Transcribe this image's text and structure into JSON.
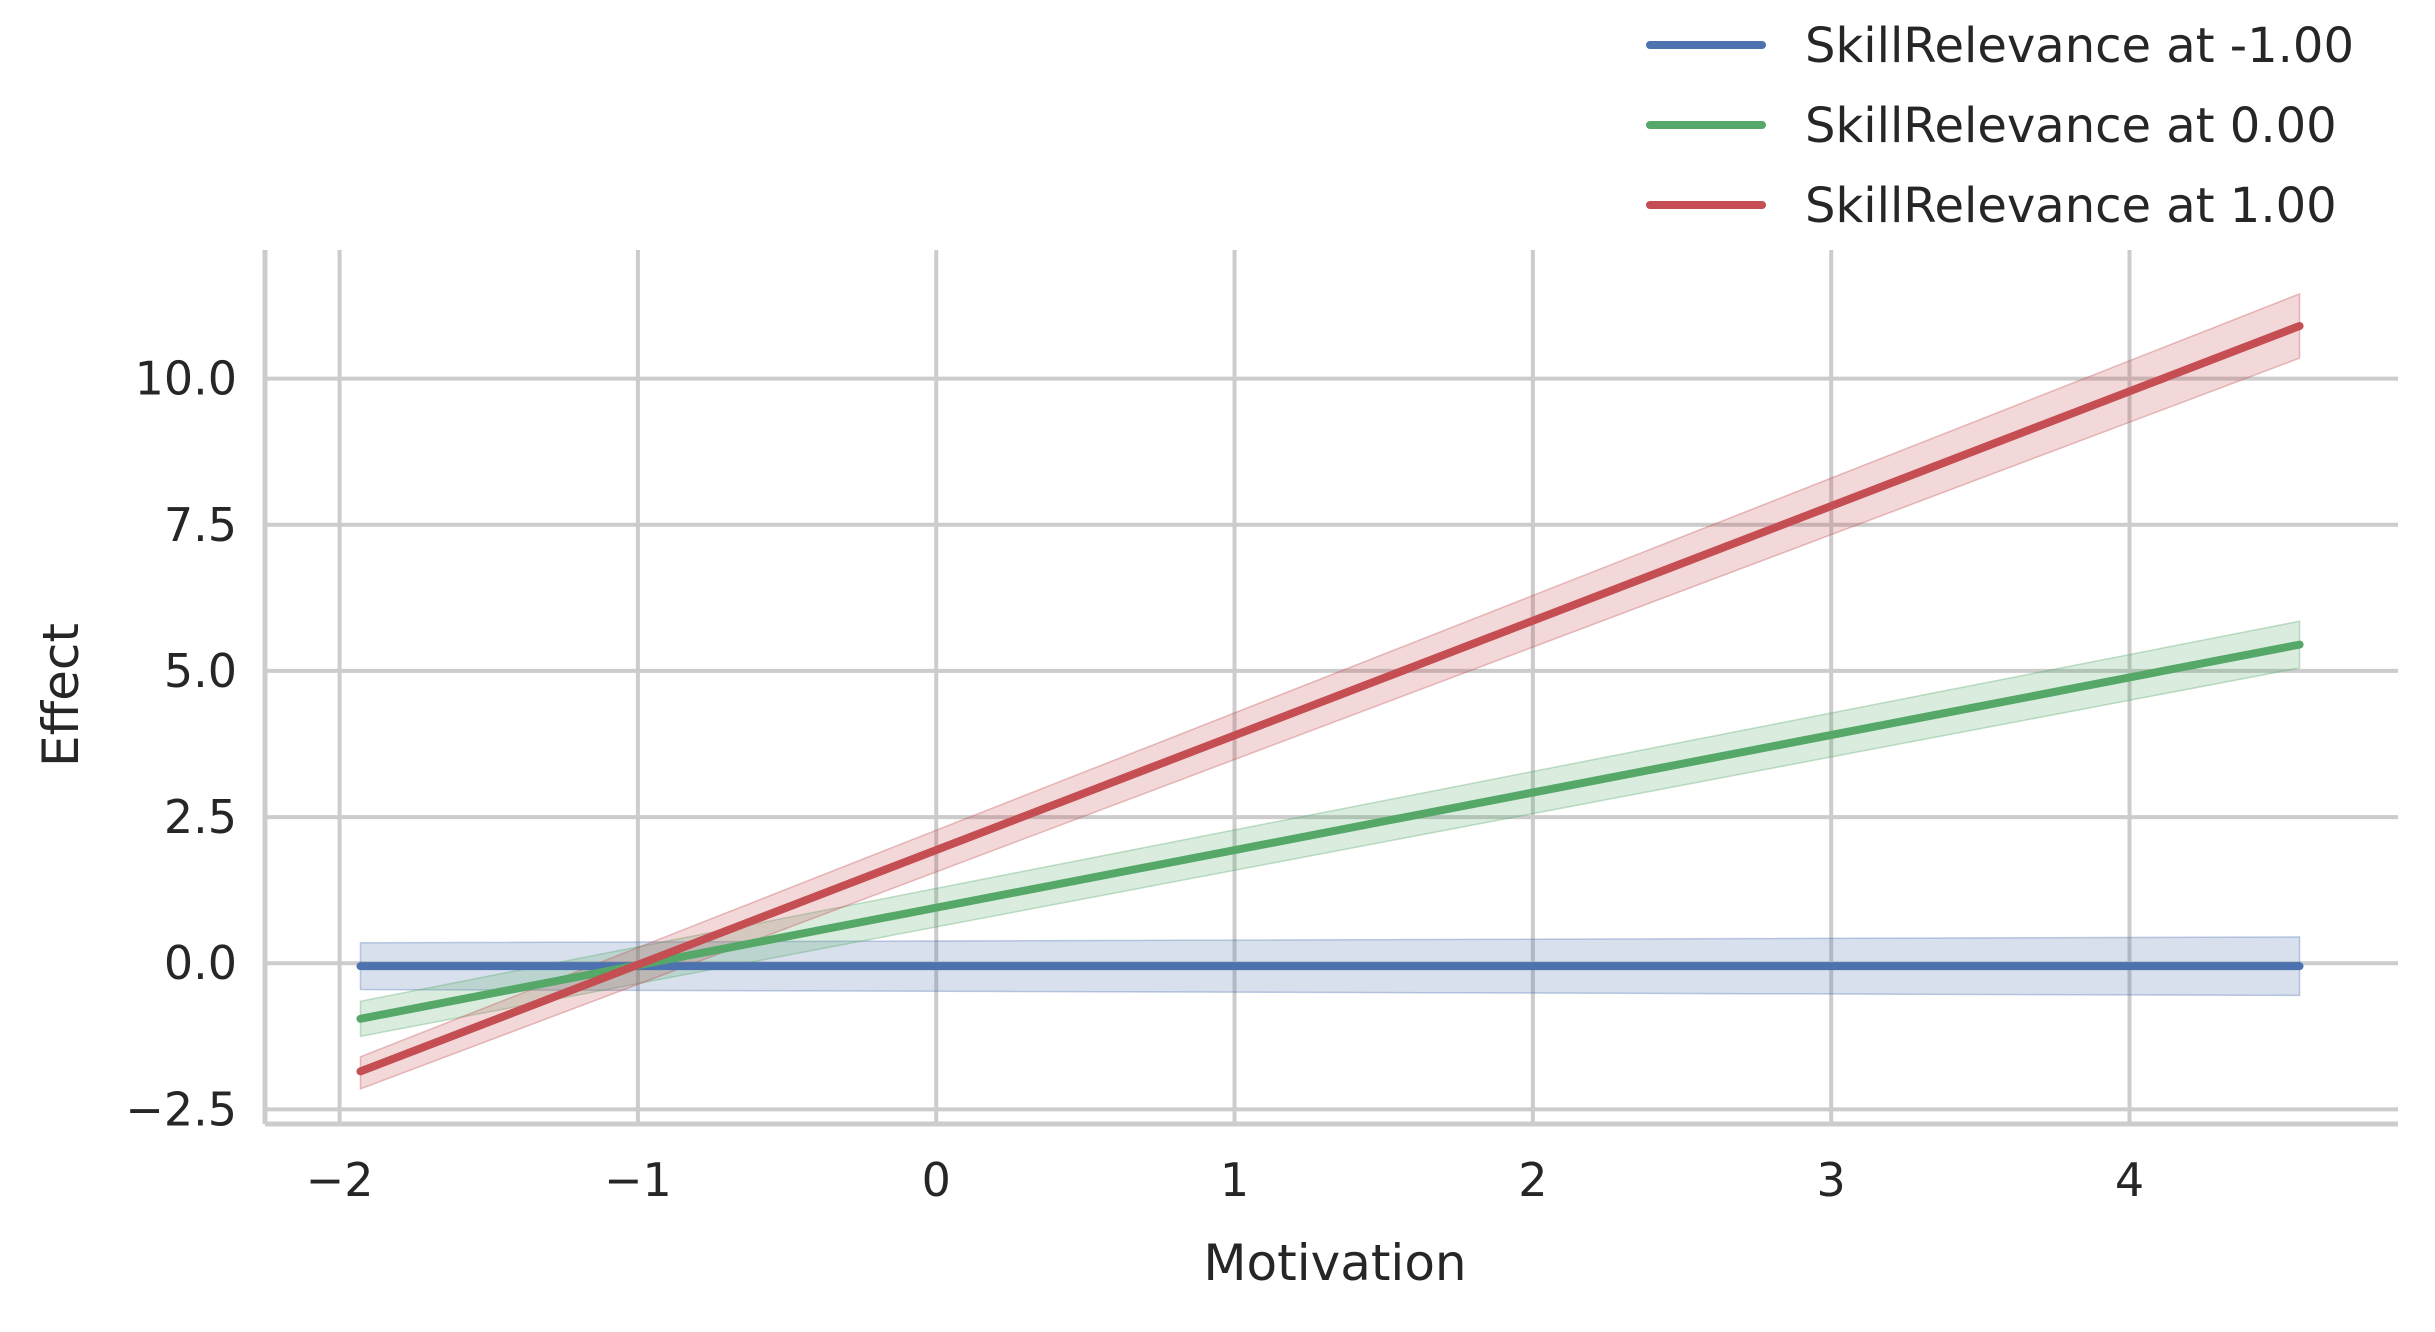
{
  "chart_data": {
    "type": "line",
    "title": "",
    "xlabel": "Motivation",
    "ylabel": "Effect",
    "xlim": [
      -2.25,
      4.9
    ],
    "ylim": [
      -2.75,
      12.2
    ],
    "xticks": [
      -2,
      -1,
      0,
      1,
      2,
      3,
      4
    ],
    "xtick_labels": [
      "−2",
      "−1",
      "0",
      "1",
      "2",
      "3",
      "4"
    ],
    "yticks": [
      -2.5,
      0.0,
      2.5,
      5.0,
      7.5,
      10.0
    ],
    "ytick_labels": [
      "−2.5",
      "0.0",
      "2.5",
      "5.0",
      "7.5",
      "10.0"
    ],
    "grid": true,
    "legend_position": "above top-right",
    "series": [
      {
        "name": "SkillRelevance at -1.00",
        "color": "#4c72b0",
        "x": [
          -1.93,
          4.57
        ],
        "y": [
          -0.05,
          -0.05
        ],
        "ci_lower": [
          -0.45,
          -0.55
        ],
        "ci_upper": [
          0.35,
          0.45
        ]
      },
      {
        "name": "SkillRelevance at 0.00",
        "color": "#55a868",
        "x": [
          -1.93,
          4.57
        ],
        "y": [
          -0.95,
          5.45
        ],
        "ci_lower": [
          -1.25,
          5.05
        ],
        "ci_upper": [
          -0.65,
          5.85
        ]
      },
      {
        "name": "SkillRelevance at 1.00",
        "color": "#c44e52",
        "x": [
          -1.93,
          4.57
        ],
        "y": [
          -1.85,
          10.9
        ],
        "ci_lower": [
          -2.15,
          10.35
        ],
        "ci_upper": [
          -1.6,
          11.45
        ]
      }
    ]
  }
}
